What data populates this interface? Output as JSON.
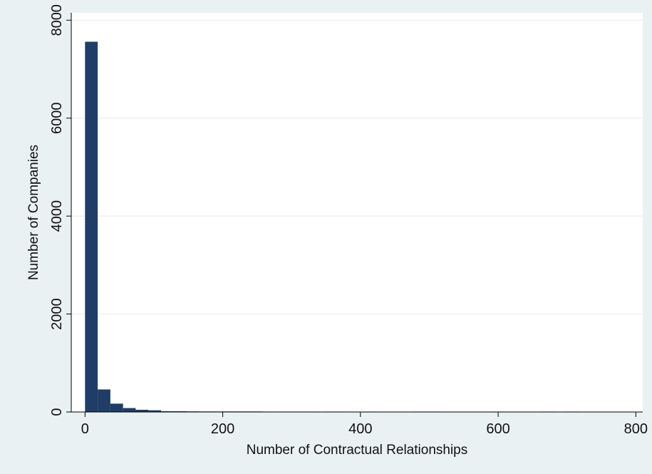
{
  "chart_data": {
    "type": "bar",
    "subtype": "histogram",
    "title": "",
    "xlabel": "Number of Contractual Relationships",
    "ylabel": "Number of Companies",
    "xlim": [
      -20,
      810
    ],
    "ylim": [
      0,
      8150
    ],
    "xticks": [
      0,
      200,
      400,
      600,
      800
    ],
    "yticks": [
      0,
      2000,
      4000,
      6000,
      8000
    ],
    "grid": {
      "horizontal": true,
      "vertical": false
    },
    "bar_color": "#1f3d66",
    "plot_background": "#ffffff",
    "page_background": "#eaf1f3",
    "bin_width": 18.4,
    "bins": [
      {
        "x0": 0,
        "x1": 18.4,
        "value": 7560
      },
      {
        "x0": 18.4,
        "x1": 36.8,
        "value": 460
      },
      {
        "x0": 36.8,
        "x1": 55.2,
        "value": 170
      },
      {
        "x0": 55.2,
        "x1": 73.6,
        "value": 80
      },
      {
        "x0": 73.6,
        "x1": 92.0,
        "value": 45
      },
      {
        "x0": 92.0,
        "x1": 110.4,
        "value": 35
      },
      {
        "x0": 110.4,
        "x1": 128.8,
        "value": 15
      },
      {
        "x0": 128.8,
        "x1": 147.2,
        "value": 15
      },
      {
        "x0": 147.2,
        "x1": 165.6,
        "value": 12
      },
      {
        "x0": 165.6,
        "x1": 184.0,
        "value": 10
      },
      {
        "x0": 184.0,
        "x1": 202.4,
        "value": 10
      },
      {
        "x0": 202.4,
        "x1": 220.8,
        "value": 10
      },
      {
        "x0": 220.8,
        "x1": 239.2,
        "value": 10
      },
      {
        "x0": 239.2,
        "x1": 257.6,
        "value": 10
      },
      {
        "x0": 257.6,
        "x1": 276.0,
        "value": 8
      },
      {
        "x0": 276.0,
        "x1": 294.4,
        "value": 8
      },
      {
        "x0": 294.4,
        "x1": 312.8,
        "value": 8
      },
      {
        "x0": 312.8,
        "x1": 331.2,
        "value": 8
      },
      {
        "x0": 349.6,
        "x1": 368.0,
        "value": 8
      },
      {
        "x0": 368.0,
        "x1": 386.4,
        "value": 8
      },
      {
        "x0": 404.8,
        "x1": 423.2,
        "value": 8
      },
      {
        "x0": 478.4,
        "x1": 496.8,
        "value": 8
      },
      {
        "x0": 496.8,
        "x1": 515.2,
        "value": 8
      },
      {
        "x0": 588.8,
        "x1": 607.2,
        "value": 8
      },
      {
        "x0": 662.4,
        "x1": 680.8,
        "value": 8
      },
      {
        "x0": 699.2,
        "x1": 717.6,
        "value": 8
      }
    ]
  }
}
